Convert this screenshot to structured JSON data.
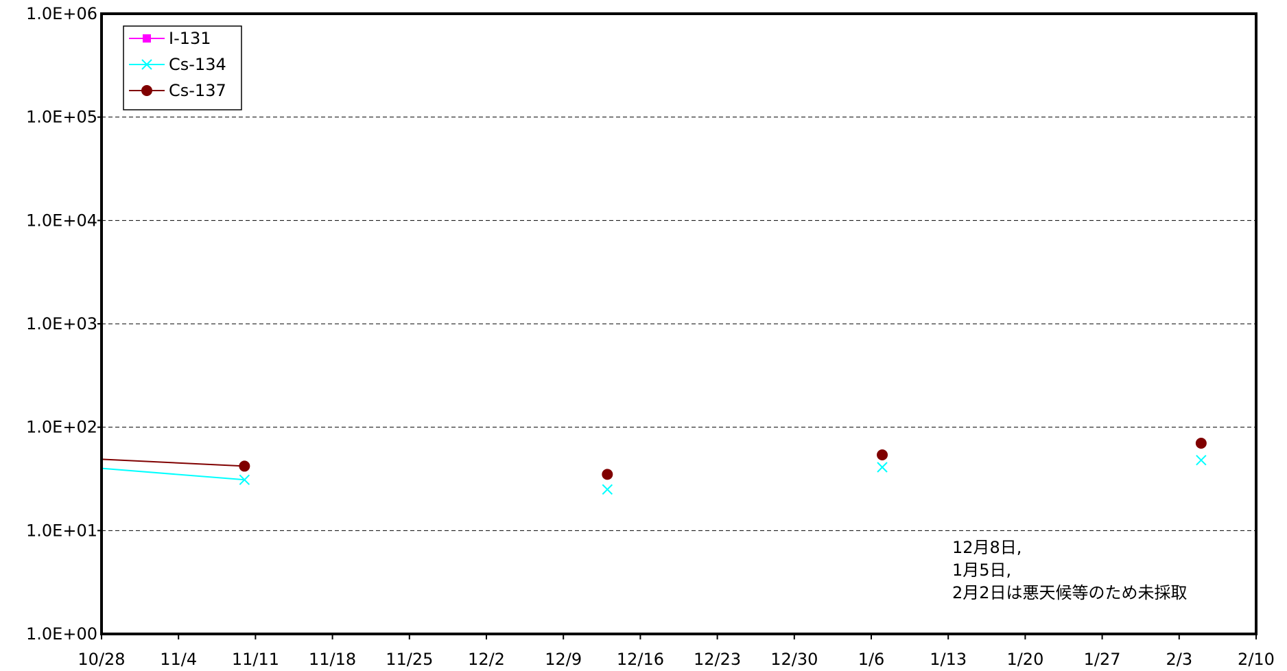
{
  "chart_data": {
    "type": "line",
    "title": "",
    "xlabel": "",
    "ylabel": "",
    "y_scale": "log",
    "ylim": [
      1,
      1000000
    ],
    "xlim": [
      "10/28",
      "2/10"
    ],
    "grid": "horizontal dashed",
    "legend_position": "top-left",
    "x_tick_labels": [
      "10/28",
      "11/4",
      "11/11",
      "11/18",
      "11/25",
      "12/2",
      "12/9",
      "12/16",
      "12/23",
      "12/30",
      "1/6",
      "1/13",
      "1/20",
      "1/27",
      "2/3",
      "2/10"
    ],
    "y_tick_labels": [
      "1.0E+00",
      "1.0E+01",
      "1.0E+02",
      "1.0E+03",
      "1.0E+04",
      "1.0E+05",
      "1.0E+06"
    ],
    "series": [
      {
        "name": "I-131",
        "color": "#ff00ff",
        "marker": "square",
        "points": []
      },
      {
        "name": "Cs-134",
        "color": "#00ffff",
        "marker": "x",
        "points": [
          {
            "x": "10/28",
            "y": 40,
            "marker": false
          },
          {
            "x": "11/10",
            "y": 31
          },
          {
            "x": "12/13",
            "y": 25
          },
          {
            "x": "1/7",
            "y": 41
          },
          {
            "x": "2/5",
            "y": 48
          }
        ]
      },
      {
        "name": "Cs-137",
        "color": "#800000",
        "marker": "circle",
        "points": [
          {
            "x": "10/28",
            "y": 49,
            "marker": false
          },
          {
            "x": "11/10",
            "y": 42
          },
          {
            "x": "12/13",
            "y": 35
          },
          {
            "x": "1/7",
            "y": 54
          },
          {
            "x": "2/5",
            "y": 70
          }
        ]
      }
    ],
    "annotation": [
      "12月8日,",
      "1月5日,",
      "2月2日は悪天候等のため未採取"
    ]
  }
}
